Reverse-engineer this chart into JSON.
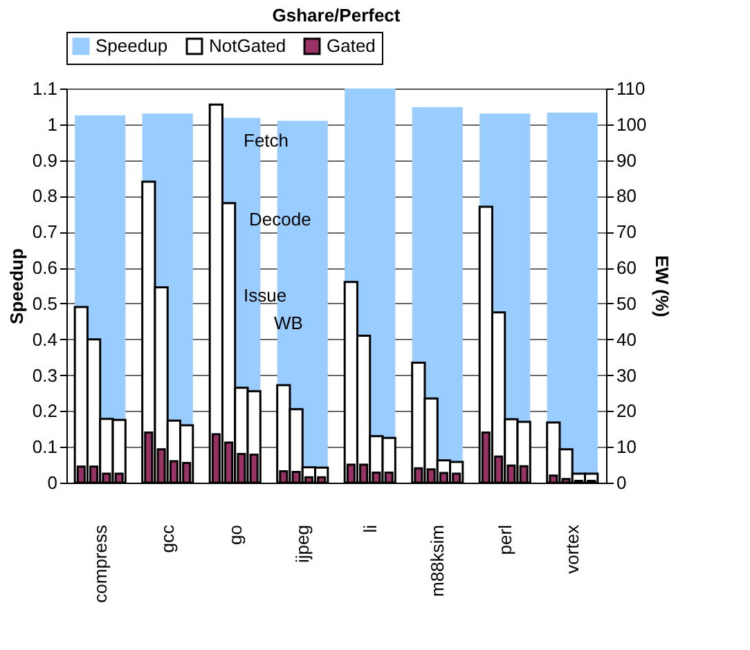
{
  "chart_data": {
    "type": "bar",
    "title": "Gshare/Perfect",
    "ylabel": "Speedup",
    "y2label": "EW (%)",
    "categories": [
      "compress",
      "gcc",
      "go",
      "ijpeg",
      "li",
      "m88ksim",
      "perl",
      "vortex"
    ],
    "series": [
      {
        "name": "Speedup",
        "color": "#99ccff",
        "axis": "y",
        "values": [
          1.025,
          1.03,
          1.018,
          1.01,
          1.1,
          1.048,
          1.03,
          1.033
        ]
      },
      {
        "name": "NotGated",
        "color": "#ffffff",
        "axis": "y2",
        "values": [
          49,
          84,
          105.5,
          27.2,
          56,
          33.5,
          77,
          16.8
        ]
      },
      {
        "color": "#ffffff",
        "axis": "y2",
        "values": [
          40,
          54.5,
          78,
          20.5,
          41,
          23.5,
          47.5,
          9.3
        ]
      },
      {
        "color": "#ffffff",
        "axis": "y2",
        "values": [
          17.8,
          17.3,
          26.5,
          4.3,
          13,
          6.2,
          17.7,
          2.5
        ]
      },
      {
        "color": "#ffffff",
        "axis": "y2",
        "values": [
          17.5,
          16,
          25.5,
          4.2,
          12.5,
          5.8,
          17,
          2.5
        ]
      },
      {
        "name": "Gated",
        "color": "#993366",
        "axis": "y2",
        "values": [
          4.5,
          14,
          13.5,
          3.2,
          5,
          4,
          14,
          2
        ]
      },
      {
        "color": "#993366",
        "axis": "y2",
        "values": [
          4.5,
          9.3,
          11.2,
          3,
          5,
          3.7,
          7.3,
          1
        ]
      },
      {
        "color": "#993366",
        "axis": "y2",
        "values": [
          2.5,
          6,
          8,
          1.5,
          2.8,
          2.7,
          4.8,
          0.5
        ]
      },
      {
        "color": "#993366",
        "axis": "y2",
        "values": [
          2.5,
          5.5,
          7.8,
          1.5,
          2.8,
          2.5,
          4.6,
          0.5
        ]
      }
    ],
    "annotations": [
      "Fetch",
      "Decode",
      "Issue",
      "WB"
    ],
    "ylim": [
      0,
      1.1
    ],
    "yticks": [
      0,
      0.1,
      0.2,
      0.3,
      0.4,
      0.5,
      0.6,
      0.7,
      0.8,
      0.9,
      1,
      1.1
    ],
    "y2lim": [
      0,
      110
    ],
    "y2ticks": [
      0,
      10,
      20,
      30,
      40,
      50,
      60,
      70,
      80,
      90,
      100,
      110
    ],
    "grid": "y",
    "legend": "top"
  }
}
